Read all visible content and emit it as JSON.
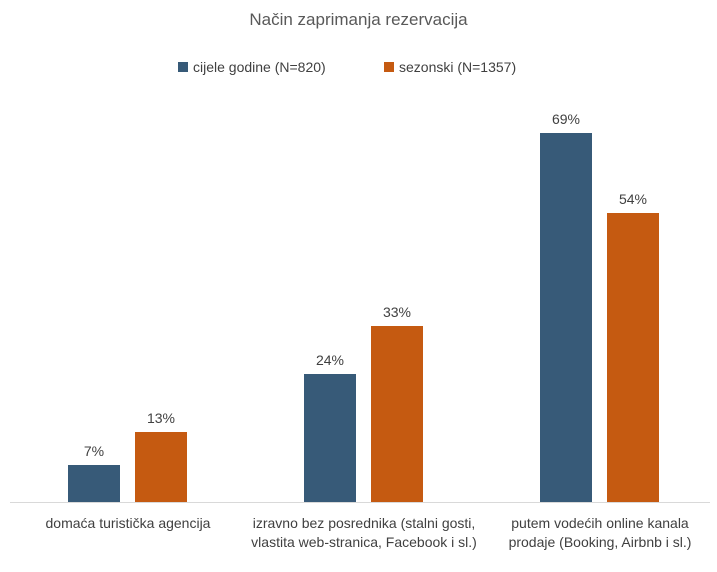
{
  "chart_data": {
    "type": "bar",
    "title": "Način zaprimanja rezervacija",
    "categories": [
      "domaća turistička agencija",
      "izravno bez posrednika (stalni gosti, vlastita web-stranica, Facebook i sl.)",
      "putem vodećih online kanala prodaje (Booking, Airbnb i sl.)"
    ],
    "series": [
      {
        "name": "cijele godine (N=820)",
        "color": "#375a78",
        "values": [
          7,
          24,
          69
        ],
        "value_labels": [
          "7%",
          "24%",
          "69%"
        ]
      },
      {
        "name": "sezonski (N=1357)",
        "color": "#c55a11",
        "values": [
          13,
          33,
          54
        ],
        "value_labels": [
          "13%",
          "33%",
          "54%"
        ]
      }
    ]
  }
}
